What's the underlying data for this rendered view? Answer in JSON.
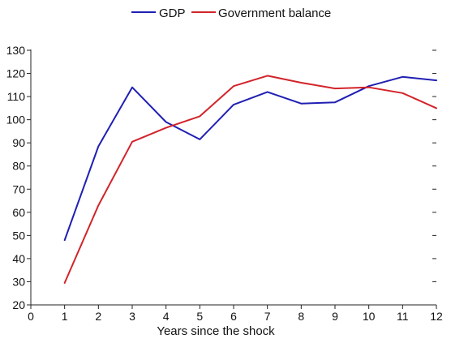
{
  "chart_data": {
    "type": "line",
    "x": [
      1,
      2,
      3,
      4,
      5,
      6,
      7,
      8,
      9,
      10,
      11,
      12
    ],
    "series": [
      {
        "name": "GDP",
        "color": "#1f1fb4",
        "values": [
          48,
          88.5,
          114,
          99,
          91.5,
          106.5,
          112,
          107,
          107.5,
          114.5,
          118.5,
          117
        ]
      },
      {
        "name": "Government balance",
        "color": "#d2232a",
        "values": [
          29.5,
          63,
          90.5,
          96.5,
          101.5,
          114.5,
          119,
          116,
          113.5,
          114,
          111.5,
          105
        ]
      }
    ],
    "title": "",
    "xlabel": "Years since the shock",
    "ylabel": "",
    "xlim": [
      0,
      12
    ],
    "ylim": [
      20,
      130
    ],
    "x_ticks": [
      0,
      1,
      2,
      3,
      4,
      5,
      6,
      7,
      8,
      9,
      10,
      11,
      12
    ],
    "y_ticks": [
      20,
      30,
      40,
      50,
      60,
      70,
      80,
      90,
      100,
      110,
      120,
      130
    ],
    "grid": false,
    "legend_position": "top-center",
    "background_color": "#ffffff",
    "axis_color": "#222222"
  }
}
